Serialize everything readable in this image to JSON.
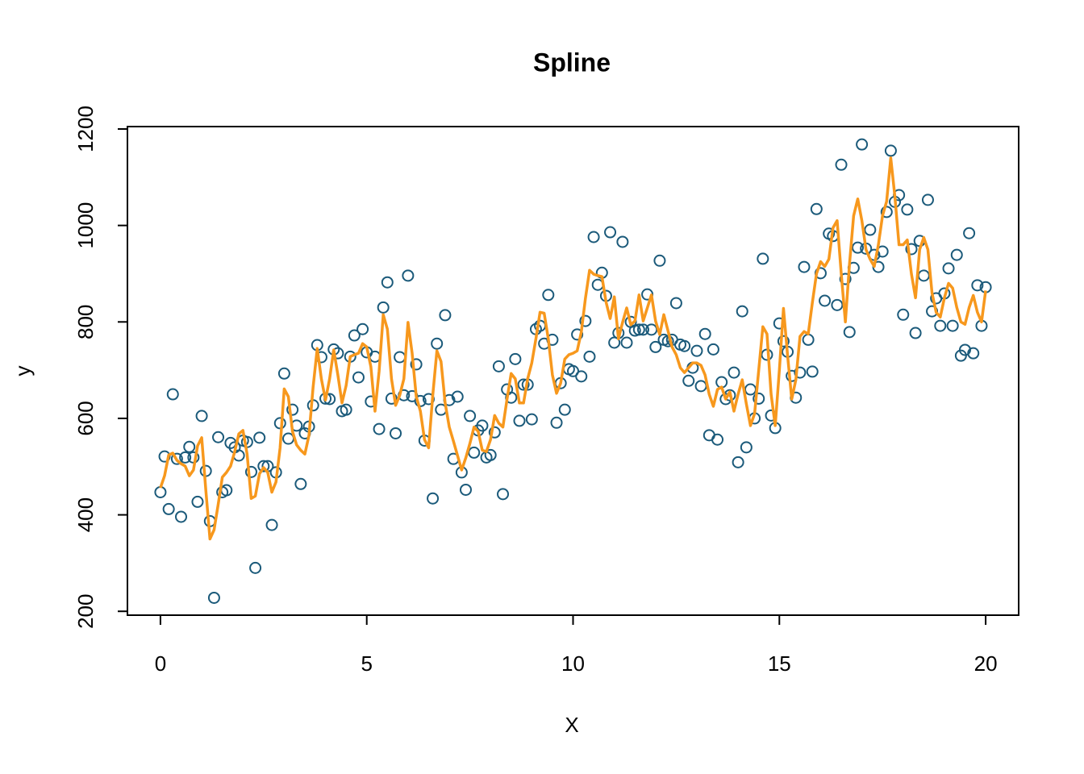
{
  "chart_data": {
    "type": "scatter",
    "title": "Spline",
    "x_label": "X",
    "y_label": "y",
    "xlim": [
      -0.8,
      20.8
    ],
    "ylim": [
      192,
      1205
    ],
    "xticks": [
      0,
      5,
      10,
      15,
      20
    ],
    "yticks": [
      200,
      400,
      600,
      800,
      1000,
      1200
    ],
    "x": [
      0,
      0.1,
      0.2,
      0.3,
      0.4,
      0.5,
      0.6,
      0.7,
      0.8,
      0.9,
      1,
      1.1,
      1.2,
      1.3,
      1.4,
      1.5,
      1.6,
      1.7,
      1.8,
      1.9,
      2,
      2.1,
      2.2,
      2.3,
      2.4,
      2.5,
      2.6,
      2.7,
      2.8,
      2.9,
      3,
      3.1,
      3.2,
      3.3,
      3.4,
      3.5,
      3.6,
      3.7,
      3.8,
      3.9,
      4,
      4.1,
      4.2,
      4.3,
      4.4,
      4.5,
      4.6,
      4.7,
      4.8,
      4.9,
      5,
      5.1,
      5.2,
      5.3,
      5.4,
      5.5,
      5.6,
      5.7,
      5.8,
      5.9,
      6,
      6.1,
      6.2,
      6.3,
      6.4,
      6.5,
      6.6,
      6.7,
      6.8,
      6.9,
      7,
      7.1,
      7.2,
      7.3,
      7.4,
      7.5,
      7.6,
      7.7,
      7.8,
      7.9,
      8,
      8.1,
      8.2,
      8.3,
      8.4,
      8.5,
      8.6,
      8.7,
      8.8,
      8.9,
      9,
      9.1,
      9.2,
      9.3,
      9.4,
      9.5,
      9.6,
      9.7,
      9.8,
      9.9,
      10,
      10.1,
      10.2,
      10.3,
      10.4,
      10.5,
      10.6,
      10.7,
      10.8,
      10.9,
      11,
      11.1,
      11.2,
      11.3,
      11.4,
      11.5,
      11.6,
      11.7,
      11.8,
      11.9,
      12,
      12.1,
      12.2,
      12.3,
      12.4,
      12.5,
      12.6,
      12.7,
      12.8,
      12.9,
      13,
      13.1,
      13.2,
      13.3,
      13.4,
      13.5,
      13.6,
      13.7,
      13.8,
      13.9,
      14,
      14.1,
      14.2,
      14.3,
      14.4,
      14.5,
      14.6,
      14.7,
      14.8,
      14.9,
      15,
      15.1,
      15.2,
      15.3,
      15.4,
      15.5,
      15.6,
      15.7,
      15.8,
      15.9,
      16,
      16.1,
      16.2,
      16.3,
      16.4,
      16.5,
      16.6,
      16.7,
      16.8,
      16.9,
      17,
      17.1,
      17.2,
      17.3,
      17.4,
      17.5,
      17.6,
      17.7,
      17.8,
      17.9,
      18,
      18.1,
      18.2,
      18.3,
      18.4,
      18.5,
      18.6,
      18.7,
      18.8,
      18.9,
      19,
      19.1,
      19.2,
      19.3,
      19.4,
      19.5,
      19.6,
      19.7,
      19.8,
      19.9,
      20
    ],
    "series": [
      {
        "type": "scatter",
        "color": "#1b5a7a",
        "values": [
          447,
          521,
          412,
          650,
          516,
          396,
          519,
          541,
          519,
          427,
          605,
          491,
          387,
          228,
          561,
          447,
          451,
          549,
          540,
          523,
          554,
          551,
          489,
          290,
          560,
          501,
          501,
          379,
          488,
          590,
          693,
          558,
          618,
          585,
          464,
          569,
          583,
          627,
          752,
          727,
          641,
          640,
          743,
          735,
          615,
          618,
          728,
          772,
          685,
          785,
          737,
          635,
          728,
          578,
          830,
          882,
          641,
          569,
          727,
          648,
          896,
          646,
          712,
          636,
          554,
          640,
          434,
          755,
          618,
          814,
          638,
          516,
          645,
          488,
          452,
          605,
          529,
          575,
          585,
          519,
          524,
          571,
          708,
          443,
          660,
          643,
          723,
          595,
          670,
          670,
          598,
          785,
          792,
          755,
          856,
          763,
          591,
          673,
          618,
          702,
          698,
          774,
          687,
          802,
          728,
          976,
          877,
          902,
          854,
          986,
          757,
          777,
          966,
          757,
          800,
          782,
          784,
          784,
          857,
          784,
          748,
          927,
          763,
          760,
          763,
          839,
          753,
          750,
          678,
          705,
          740,
          667,
          775,
          565,
          743,
          556,
          675,
          640,
          648,
          695,
          509,
          822,
          540,
          660,
          600,
          641,
          931,
          732,
          606,
          580,
          797,
          760,
          738,
          688,
          643,
          695,
          914,
          763,
          697,
          1034,
          901,
          844,
          983,
          978,
          835,
          1126,
          889,
          779,
          912,
          954,
          1168,
          952,
          991,
          939,
          914,
          946,
          1028,
          1155,
          1049,
          1063,
          815,
          1033,
          951,
          777,
          968,
          896,
          1053,
          822,
          849,
          792,
          859,
          911,
          792,
          939,
          730,
          742,
          984,
          735,
          876,
          792,
          872
        ]
      },
      {
        "type": "line",
        "color": "#f7981d",
        "values": [
          456,
          481,
          524,
          528,
          513,
          506,
          501,
          481,
          493,
          543,
          560,
          451,
          350,
          369,
          422,
          478,
          488,
          501,
          531,
          568,
          575,
          526,
          434,
          439,
          485,
          498,
          488,
          447,
          468,
          539,
          661,
          645,
          573,
          545,
          534,
          526,
          565,
          665,
          745,
          682,
          638,
          682,
          742,
          690,
          632,
          668,
          728,
          732,
          735,
          755,
          748,
          707,
          615,
          698,
          815,
          785,
          682,
          627,
          648,
          682,
          799,
          735,
          645,
          615,
          556,
          539,
          648,
          740,
          718,
          632,
          582,
          553,
          523,
          493,
          518,
          548,
          582,
          573,
          534,
          531,
          556,
          606,
          590,
          582,
          640,
          693,
          682,
          632,
          632,
          682,
          715,
          765,
          820,
          818,
          765,
          690,
          652,
          673,
          723,
          732,
          735,
          740,
          779,
          849,
          907,
          899,
          896,
          894,
          841,
          807,
          852,
          765,
          799,
          829,
          794,
          802,
          856,
          802,
          829,
          856,
          802,
          774,
          815,
          782,
          748,
          732,
          705,
          695,
          705,
          715,
          715,
          710,
          690,
          650,
          625,
          660,
          665,
          640,
          655,
          615,
          650,
          680,
          630,
          585,
          610,
          700,
          790,
          775,
          650,
          585,
          700,
          828,
          730,
          640,
          680,
          770,
          780,
          775,
          840,
          900,
          925,
          915,
          930,
          995,
          1010,
          900,
          800,
          920,
          1020,
          1055,
          1010,
          950,
          930,
          915,
          960,
          1020,
          1050,
          1140,
          1060,
          960,
          960,
          970,
          900,
          850,
          950,
          975,
          950,
          860,
          820,
          810,
          850,
          880,
          870,
          830,
          800,
          795,
          830,
          855,
          820,
          800,
          865
        ]
      }
    ]
  }
}
